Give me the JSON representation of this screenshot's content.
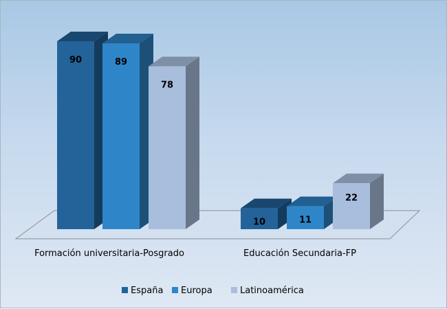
{
  "chart_data": {
    "type": "bar",
    "style": "3d-clustered-column",
    "categories": [
      "Formación universitaria-Posgrado",
      "Educación Secundaria-FP"
    ],
    "series": [
      {
        "name": "España",
        "values": [
          90,
          10
        ],
        "color": "#23639a"
      },
      {
        "name": "Europa",
        "values": [
          89,
          11
        ],
        "color": "#2e86c8"
      },
      {
        "name": "Latinoamérica",
        "values": [
          78,
          22
        ],
        "color": "#a9bedd"
      }
    ],
    "data_labels": true,
    "ylim": [
      0,
      90
    ],
    "grid": false,
    "legend": "bottom"
  }
}
